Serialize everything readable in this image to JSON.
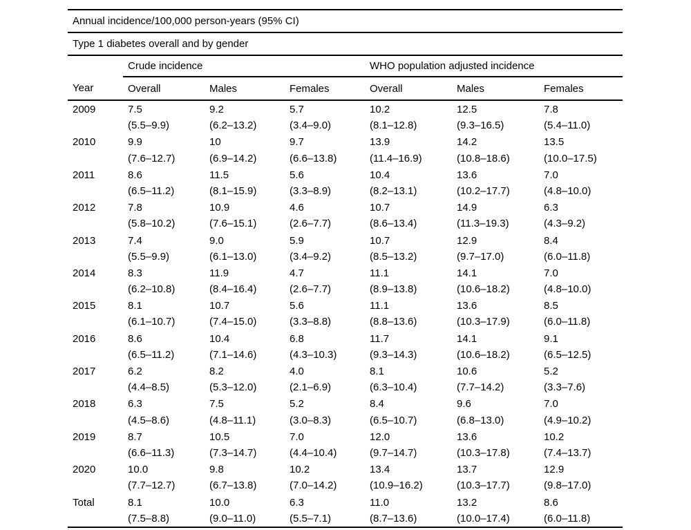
{
  "page": {
    "background": "#ffffff",
    "text_color": "#000000",
    "rule_color": "#000000"
  },
  "table": {
    "caption_line1": "Annual incidence/100,000 person-years (95% CI)",
    "caption_line2": "Type 1 diabetes overall and by gender",
    "group_headers": [
      "Crude incidence",
      "WHO population adjusted incidence"
    ],
    "column_headers": [
      "Year",
      "Overall",
      "Males",
      "Females",
      "Overall",
      "Males",
      "Females"
    ],
    "rows": [
      {
        "year": "2009",
        "cells": [
          {
            "value": "7.5",
            "ci": "(5.5–9.9)"
          },
          {
            "value": "9.2",
            "ci": "(6.2–13.2)"
          },
          {
            "value": "5.7",
            "ci": "(3.4–9.0)"
          },
          {
            "value": "10.2",
            "ci": "(8.1–12.8)"
          },
          {
            "value": "12.5",
            "ci": "(9.3–16.5)"
          },
          {
            "value": "7.8",
            "ci": "(5.4–11.0)"
          }
        ]
      },
      {
        "year": "2010",
        "cells": [
          {
            "value": "9.9",
            "ci": "(7.6–12.7)"
          },
          {
            "value": "10",
            "ci": "(6.9–14.2)"
          },
          {
            "value": "9.7",
            "ci": "(6.6–13.8)"
          },
          {
            "value": "13.9",
            "ci": "(11.4–16.9)"
          },
          {
            "value": "14.2",
            "ci": "(10.8–18.6)"
          },
          {
            "value": "13.5",
            "ci": "(10.0–17.5)"
          }
        ]
      },
      {
        "year": "2011",
        "cells": [
          {
            "value": "8.6",
            "ci": "(6.5–11.2)"
          },
          {
            "value": "11.5",
            "ci": "(8.1–15.9)"
          },
          {
            "value": "5.6",
            "ci": "(3.3–8.9)"
          },
          {
            "value": "10.4",
            "ci": "(8.2–13.1)"
          },
          {
            "value": "13.6",
            "ci": "(10.2–17.7)"
          },
          {
            "value": "7.0",
            "ci": "(4.8–10.0)"
          }
        ]
      },
      {
        "year": "2012",
        "cells": [
          {
            "value": "7.8",
            "ci": "(5.8–10.2)"
          },
          {
            "value": "10.9",
            "ci": "(7.6–15.1)"
          },
          {
            "value": "4.6",
            "ci": "(2.6–7.7)"
          },
          {
            "value": "10.7",
            "ci": "(8.6–13.4)"
          },
          {
            "value": "14.9",
            "ci": "(11.3–19.3)"
          },
          {
            "value": "6.3",
            "ci": "(4.3–9.2)"
          }
        ]
      },
      {
        "year": "2013",
        "cells": [
          {
            "value": "7.4",
            "ci": "(5.5–9.9)"
          },
          {
            "value": "9.0",
            "ci": "(6.1–13.0)"
          },
          {
            "value": "5.9",
            "ci": "(3.4–9.2)"
          },
          {
            "value": "10.7",
            "ci": "(8.5–13.2)"
          },
          {
            "value": "12.9",
            "ci": "(9.7–17.0)"
          },
          {
            "value": "8.4",
            "ci": "(6.0–11.8)"
          }
        ]
      },
      {
        "year": "2014",
        "cells": [
          {
            "value": "8.3",
            "ci": "(6.2–10.8)"
          },
          {
            "value": "11.9",
            "ci": "(8.4–16.4)"
          },
          {
            "value": "4.7",
            "ci": "(2.6–7.7)"
          },
          {
            "value": "11.1",
            "ci": "(8.9–13.8)"
          },
          {
            "value": "14.1",
            "ci": "(10.6–18.2)"
          },
          {
            "value": "7.0",
            "ci": "(4.8–10.0)"
          }
        ]
      },
      {
        "year": "2015",
        "cells": [
          {
            "value": "8.1",
            "ci": "(6.1–10.7)"
          },
          {
            "value": "10.7",
            "ci": "(7.4–15.0)"
          },
          {
            "value": "5.6",
            "ci": "(3.3–8.8)"
          },
          {
            "value": "11.1",
            "ci": "(8.8–13.6)"
          },
          {
            "value": "13.6",
            "ci": "(10.3–17.9)"
          },
          {
            "value": "8.5",
            "ci": "(6.0–11.8)"
          }
        ]
      },
      {
        "year": "2016",
        "cells": [
          {
            "value": "8.6",
            "ci": "(6.5–11.2)"
          },
          {
            "value": "10.4",
            "ci": "(7.1–14.6)"
          },
          {
            "value": "6.8",
            "ci": "(4.3–10.3)"
          },
          {
            "value": "11.7",
            "ci": "(9.3–14.3)"
          },
          {
            "value": "14.1",
            "ci": "(10.6–18.2)"
          },
          {
            "value": "9.1",
            "ci": "(6.5–12.5)"
          }
        ]
      },
      {
        "year": "2017",
        "cells": [
          {
            "value": "6.2",
            "ci": "(4.4–8.5)"
          },
          {
            "value": "8.2",
            "ci": "(5.3–12.0)"
          },
          {
            "value": "4.0",
            "ci": "(2.1–6.9)"
          },
          {
            "value": "8.1",
            "ci": "(6.3–10.4)"
          },
          {
            "value": "10.6",
            "ci": "(7.7–14.2)"
          },
          {
            "value": "5.2",
            "ci": "(3.3–7.6)"
          }
        ]
      },
      {
        "year": "2018",
        "cells": [
          {
            "value": "6.3",
            "ci": "(4.5–8.6)"
          },
          {
            "value": "7.5",
            "ci": "(4.8–11.1)"
          },
          {
            "value": "5.2",
            "ci": "(3.0–8.3)"
          },
          {
            "value": "8.4",
            "ci": "(6.5–10.7)"
          },
          {
            "value": "9.6",
            "ci": "(6.8–13.0)"
          },
          {
            "value": "7.0",
            "ci": "(4.9–10.2)"
          }
        ]
      },
      {
        "year": "2019",
        "cells": [
          {
            "value": "8.7",
            "ci": "(6.6–11.3)"
          },
          {
            "value": "10.5",
            "ci": "(7.3–14.7)"
          },
          {
            "value": "7.0",
            "ci": "(4.4–10.4)"
          },
          {
            "value": "12.0",
            "ci": "(9.7–14.7)"
          },
          {
            "value": "13.6",
            "ci": "(10.3–17.8)"
          },
          {
            "value": "10.2",
            "ci": "(7.4–13.7)"
          }
        ]
      },
      {
        "year": "2020",
        "cells": [
          {
            "value": "10.0",
            "ci": "(7.7–12.7)"
          },
          {
            "value": "9.8",
            "ci": "(6.7–13.8)"
          },
          {
            "value": "10.2",
            "ci": "(7.0–14.2)"
          },
          {
            "value": "13.4",
            "ci": "(10.9–16.2)"
          },
          {
            "value": "13.7",
            "ci": "(10.3–17.7)"
          },
          {
            "value": "12.9",
            "ci": "(9.8–17.0)"
          }
        ]
      },
      {
        "year": "Total",
        "cells": [
          {
            "value": "8.1",
            "ci": "(7.5–8.8)"
          },
          {
            "value": "10.0",
            "ci": "(9.0–11.0)"
          },
          {
            "value": "6.3",
            "ci": "(5.5–7.1)"
          },
          {
            "value": "11.0",
            "ci": "(8.7–13.6)"
          },
          {
            "value": "13.2",
            "ci": "(10.0–17.4)"
          },
          {
            "value": "8.6",
            "ci": "(6.0–11.8)"
          }
        ]
      }
    ]
  }
}
